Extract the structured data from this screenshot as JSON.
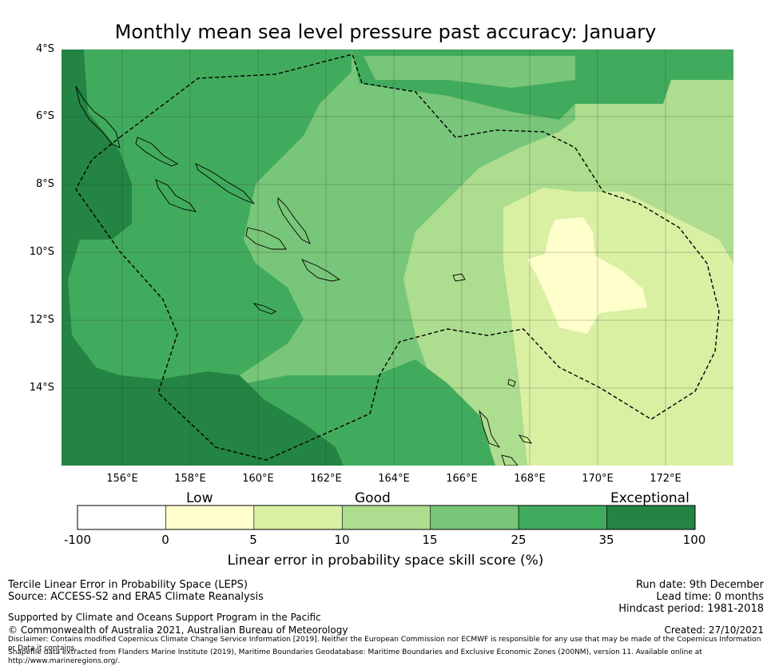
{
  "title": "Monthly mean sea level pressure past accuracy: January",
  "map": {
    "lat_labels": [
      "4°S",
      "6°S",
      "8°S",
      "10°S",
      "12°S",
      "14°S"
    ],
    "lon_labels": [
      "156°E",
      "158°E",
      "160°E",
      "162°E",
      "164°E",
      "166°E",
      "168°E",
      "170°E",
      "172°E"
    ],
    "lon_range": [
      154.2,
      174.0
    ],
    "lat_range": [
      -16.3,
      -4.0
    ]
  },
  "colorbar": {
    "category_labels": [
      "Low",
      "Good",
      "Exceptional"
    ],
    "tick_labels": [
      "-100",
      "0",
      "5",
      "10",
      "15",
      "25",
      "35",
      "100"
    ],
    "colors": [
      "#ffffff",
      "#ffffcc",
      "#d9f0a3",
      "#addd8e",
      "#78c679",
      "#41ab5d",
      "#238443"
    ],
    "title": "Linear error in probability space skill score (%)"
  },
  "footer": {
    "left_line1": "Tercile Linear Error in Probability Space (LEPS)",
    "left_line2": "Source: ACCESS-S2 and ERA5 Climate Reanalysis",
    "right_line1": "Run date: 9th December",
    "right_line2": "Lead time: 0 months",
    "right_line3": "Hindcast period: 1981-2018",
    "supported": "Supported by Climate and Oceans Support Program in the Pacific",
    "copyright": "© Commonwealth of Australia 2021, Australian Bureau of Meteorology",
    "created": "Created: 27/10/2021",
    "disclaimer": "Disclaimer: Contains modified Copernicus Climate Change Service Information [2019]. Neither the European Commission nor ECMWF is responsible for any use that may be made of the Copernicus Information or Data it contains.",
    "shapefile": "Shapefile data extracted from Flanders Marine Institute (2019), Maritime Boundaries Geodatabase: Maritime Boundaries and Exclusive Economic Zones (200NM), version 11. Available online at http://www.marineregions.org/."
  }
}
